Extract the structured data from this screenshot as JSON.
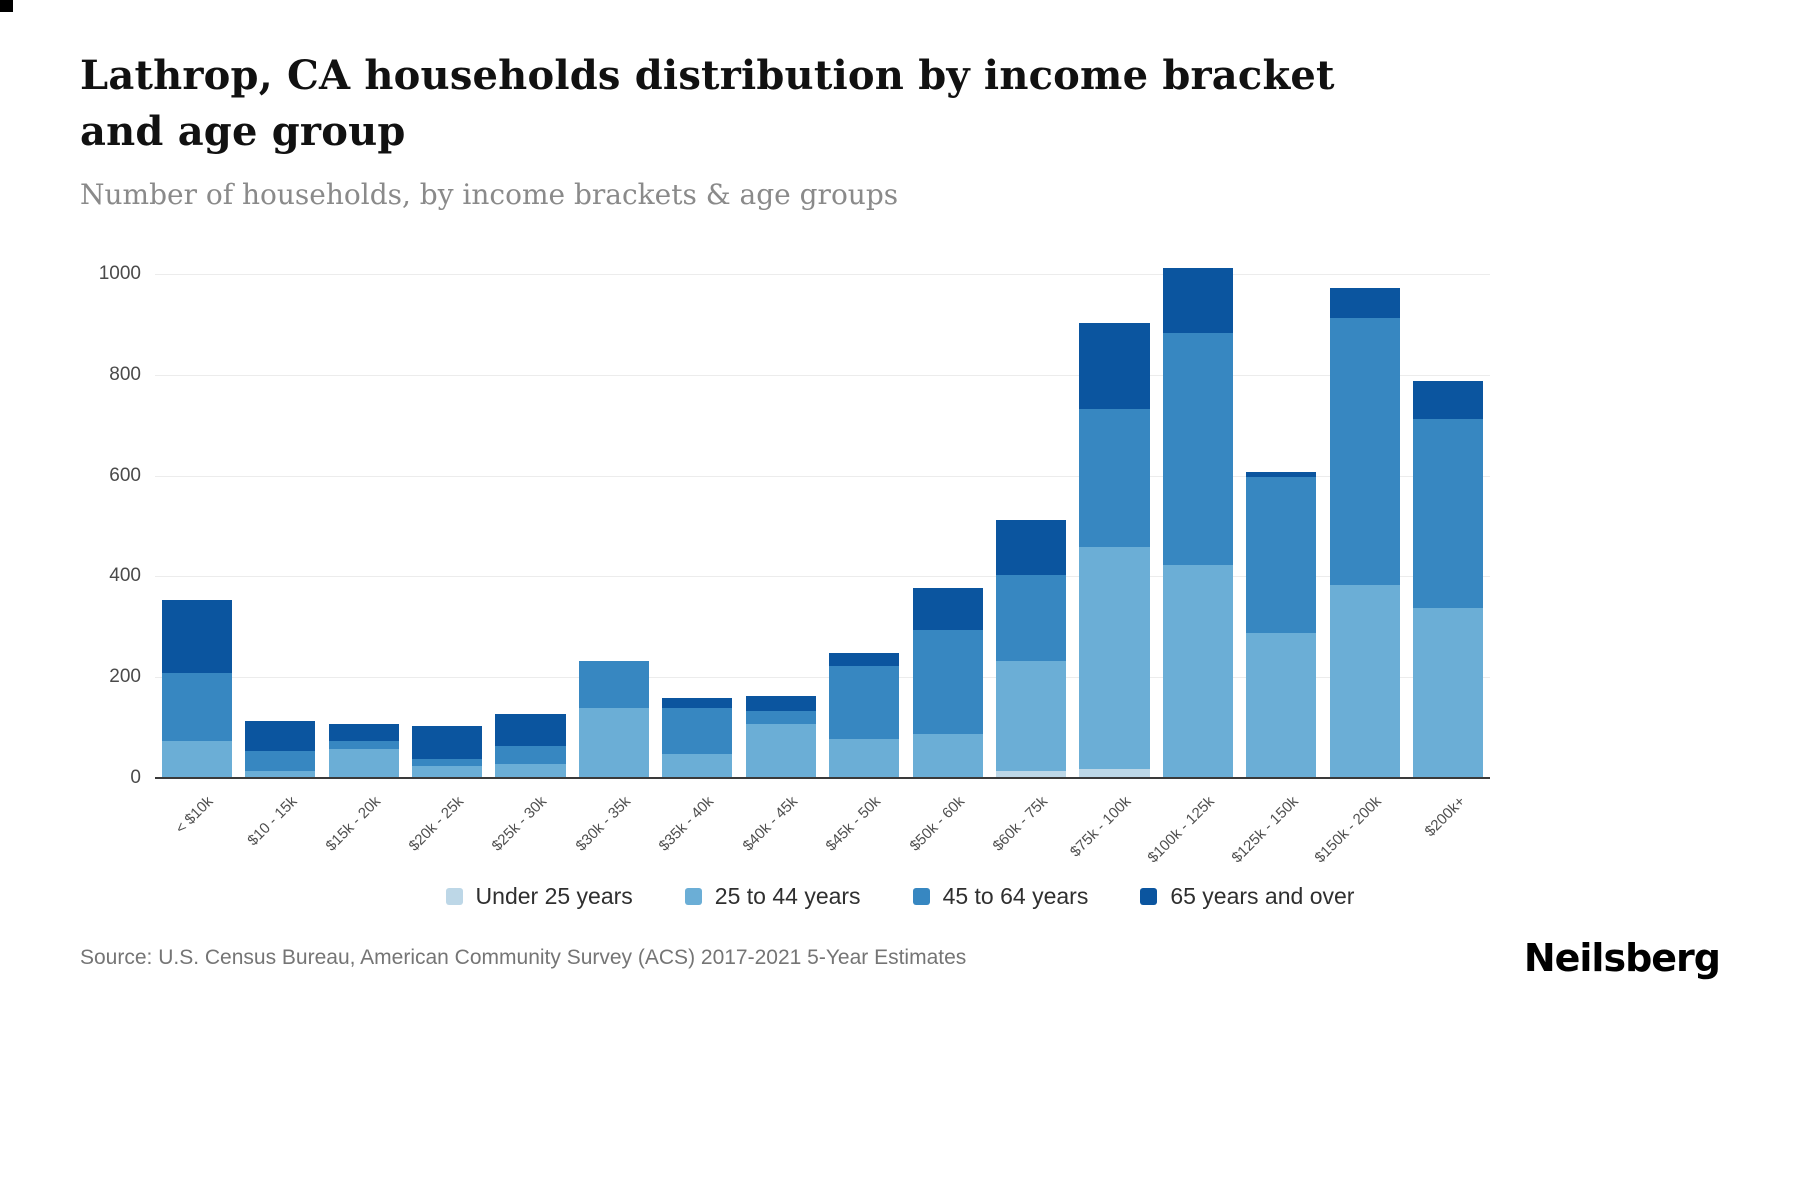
{
  "page": {
    "title": "Lathrop, CA households distribution by income bracket and age group",
    "subtitle": "Number of households, by income brackets & age groups",
    "source": "Source: U.S. Census Bureau, American Community Survey (ACS) 2017-2021 5-Year Estimates",
    "brand": "Neilsberg"
  },
  "chart_data": {
    "type": "bar",
    "stacked": true,
    "title": "Lathrop, CA households distribution by income bracket and age group",
    "subtitle": "Number of households, by income brackets & age groups",
    "xlabel": "",
    "ylabel": "Number of households",
    "ylim": [
      0,
      1040
    ],
    "yticks": [
      0,
      200,
      400,
      600,
      800,
      1000
    ],
    "grid": true,
    "legend_position": "bottom",
    "categories": [
      "< $10k",
      "$10 - 15k",
      "$15k - 20k",
      "$20k - 25k",
      "$25k - 30k",
      "$30k - 35k",
      "$35k - 40k",
      "$40k - 45k",
      "$45k - 50k",
      "$50k - 60k",
      "$60k - 75k",
      "$75k - 100k",
      "$100k - 125k",
      "$125k - 150k",
      "$150k - 200k",
      "$200k+"
    ],
    "series": [
      {
        "name": "Under 25 years",
        "color": "#bdd7e7",
        "values": [
          0,
          0,
          0,
          0,
          0,
          0,
          0,
          0,
          0,
          0,
          15,
          20,
          0,
          0,
          0,
          0
        ]
      },
      {
        "name": "25 to 44 years",
        "color": "#6baed6",
        "values": [
          75,
          15,
          60,
          25,
          30,
          140,
          50,
          110,
          80,
          90,
          220,
          440,
          425,
          290,
          385,
          340
        ]
      },
      {
        "name": "45 to 64 years",
        "color": "#3787c1",
        "values": [
          135,
          40,
          15,
          15,
          35,
          95,
          90,
          25,
          145,
          205,
          170,
          275,
          460,
          310,
          530,
          375
        ]
      },
      {
        "name": "65 years and over",
        "color": "#0b559f",
        "values": [
          145,
          60,
          35,
          65,
          65,
          0,
          20,
          30,
          25,
          85,
          110,
          170,
          130,
          10,
          60,
          75
        ]
      }
    ]
  }
}
